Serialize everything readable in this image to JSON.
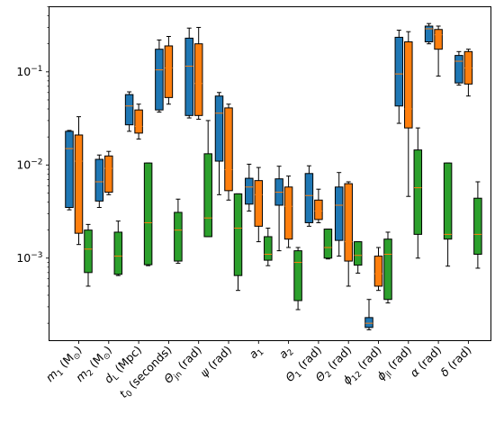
{
  "chart_data": {
    "type": "boxplot",
    "title": "",
    "xlabel": "",
    "ylabel": "",
    "yscale": "log",
    "ylim": [
      0.00013,
      0.5
    ],
    "y_ticks": [
      {
        "value": 0.001,
        "base": "10",
        "exp": "−3"
      },
      {
        "value": 0.01,
        "base": "10",
        "exp": "−2"
      },
      {
        "value": 0.1,
        "base": "10",
        "exp": "−1"
      }
    ],
    "grid": false,
    "legend": "none",
    "colors": {
      "s0": "#1f77b4",
      "s1": "#ff7f0e",
      "s2": "#2ca02c",
      "median": "#ff7f0e",
      "edge": "#000000"
    },
    "categories": [
      {
        "label": "m",
        "sub": "1",
        "unit": " (M",
        "unitsub": "⊙",
        "close": ")"
      },
      {
        "label": "m",
        "sub": "2",
        "unit": " (M",
        "unitsub": "⊙",
        "close": ")"
      },
      {
        "label": "d",
        "sub": "L",
        "unit": " (Mpc)",
        "unitsub": "",
        "close": ""
      },
      {
        "label": "t",
        "sub": "0",
        "unit": " (seconds)",
        "unitsub": "",
        "close": ""
      },
      {
        "label": "Θ",
        "sub": "jn",
        "unit": " (rad)",
        "unitsub": "",
        "close": ""
      },
      {
        "label": "ψ",
        "sub": "",
        "unit": " (rad)",
        "unitsub": "",
        "close": ""
      },
      {
        "label": "a",
        "sub": "1",
        "unit": "",
        "unitsub": "",
        "close": ""
      },
      {
        "label": "a",
        "sub": "2",
        "unit": "",
        "unitsub": "",
        "close": ""
      },
      {
        "label": "Θ",
        "sub": "1",
        "unit": " (rad)",
        "unitsub": "",
        "close": ""
      },
      {
        "label": "Θ",
        "sub": "2",
        "unit": " (rad)",
        "unitsub": "",
        "close": ""
      },
      {
        "label": "ϕ",
        "sub": "12",
        "unit": " (rad)",
        "unitsub": "",
        "close": ""
      },
      {
        "label": "ϕ",
        "sub": "jl",
        "unit": " (rad)",
        "unitsub": "",
        "close": ""
      },
      {
        "label": "α",
        "sub": "",
        "unit": " (rad)",
        "unitsub": "",
        "close": ""
      },
      {
        "label": "δ",
        "sub": "",
        "unit": " (rad)",
        "unitsub": "",
        "close": ""
      }
    ],
    "series": [
      {
        "color": "#1f77b4",
        "boxes": [
          {
            "whislo": 0.0033,
            "q1": 0.0035,
            "med": 0.015,
            "q3": 0.023,
            "whishi": 0.0235
          },
          {
            "whislo": 0.0035,
            "q1": 0.0041,
            "med": 0.0066,
            "q3": 0.0115,
            "whishi": 0.0128
          },
          {
            "whislo": 0.023,
            "q1": 0.027,
            "med": 0.043,
            "q3": 0.057,
            "whishi": 0.061
          },
          {
            "whislo": 0.037,
            "q1": 0.039,
            "med": 0.105,
            "q3": 0.175,
            "whishi": 0.22
          },
          {
            "whislo": 0.032,
            "q1": 0.034,
            "med": 0.115,
            "q3": 0.23,
            "whishi": 0.295
          },
          {
            "whislo": 0.0048,
            "q1": 0.011,
            "med": 0.036,
            "q3": 0.055,
            "whishi": 0.06
          },
          {
            "whislo": 0.0032,
            "q1": 0.0038,
            "med": 0.0058,
            "q3": 0.0072,
            "whishi": 0.0102
          },
          {
            "whislo": 0.0012,
            "q1": 0.0037,
            "med": 0.0051,
            "q3": 0.0071,
            "whishi": 0.0097
          },
          {
            "whislo": 0.0022,
            "q1": 0.0024,
            "med": 0.0047,
            "q3": 0.0081,
            "whishi": 0.0098
          },
          {
            "whislo": 0.00105,
            "q1": 0.00155,
            "med": 0.0037,
            "q3": 0.0058,
            "whishi": 0.0083
          },
          {
            "whislo": 0.00017,
            "q1": 0.00018,
            "med": 0.0002,
            "q3": 0.00023,
            "whishi": 0.00036
          },
          {
            "whislo": 0.028,
            "q1": 0.043,
            "med": 0.095,
            "q3": 0.235,
            "whishi": 0.28
          },
          {
            "whislo": 0.2,
            "q1": 0.21,
            "med": 0.29,
            "q3": 0.31,
            "whishi": 0.33
          },
          {
            "whislo": 0.072,
            "q1": 0.076,
            "med": 0.13,
            "q3": 0.15,
            "whishi": 0.165
          }
        ]
      },
      {
        "color": "#ff7f0e",
        "boxes": [
          {
            "whislo": 0.0014,
            "q1": 0.00185,
            "med": 0.011,
            "q3": 0.021,
            "whishi": 0.033
          },
          {
            "whislo": 0.0048,
            "q1": 0.0051,
            "med": 0.0092,
            "q3": 0.0125,
            "whishi": 0.014
          },
          {
            "whislo": 0.019,
            "q1": 0.022,
            "med": 0.026,
            "q3": 0.039,
            "whishi": 0.045
          },
          {
            "whislo": 0.045,
            "q1": 0.053,
            "med": 0.11,
            "q3": 0.19,
            "whishi": 0.24
          },
          {
            "whislo": 0.031,
            "q1": 0.034,
            "med": 0.075,
            "q3": 0.2,
            "whishi": 0.3
          },
          {
            "whislo": 0.0042,
            "q1": 0.0053,
            "med": 0.0089,
            "q3": 0.041,
            "whishi": 0.045
          },
          {
            "whislo": 0.0015,
            "q1": 0.0022,
            "med": 0.0048,
            "q3": 0.0068,
            "whishi": 0.0094
          },
          {
            "whislo": 0.0013,
            "q1": 0.0016,
            "med": 0.0036,
            "q3": 0.0058,
            "whishi": 0.0076
          },
          {
            "whislo": 0.0024,
            "q1": 0.0026,
            "med": 0.0032,
            "q3": 0.0042,
            "whishi": 0.0055
          },
          {
            "whislo": 0.0005,
            "q1": 0.00093,
            "med": 0.0015,
            "q3": 0.0063,
            "whishi": 0.0066
          },
          {
            "whislo": 0.00045,
            "q1": 0.0005,
            "med": 0.00068,
            "q3": 0.00105,
            "whishi": 0.0013
          },
          {
            "whislo": 0.0046,
            "q1": 0.025,
            "med": 0.04,
            "q3": 0.21,
            "whishi": 0.27
          },
          {
            "whislo": 0.09,
            "q1": 0.175,
            "med": 0.25,
            "q3": 0.285,
            "whishi": 0.31
          },
          {
            "whislo": 0.055,
            "q1": 0.074,
            "med": 0.11,
            "q3": 0.165,
            "whishi": 0.175
          }
        ]
      },
      {
        "color": "#2ca02c",
        "boxes": [
          {
            "whislo": 0.0005,
            "q1": 0.0007,
            "med": 0.00125,
            "q3": 0.002,
            "whishi": 0.0023
          },
          {
            "whislo": 0.00065,
            "q1": 0.00067,
            "med": 0.00105,
            "q3": 0.0019,
            "whishi": 0.0025
          },
          {
            "whislo": 0.00083,
            "q1": 0.00085,
            "med": 0.0024,
            "q3": 0.0105,
            "whishi": 0.0105
          },
          {
            "whislo": 0.00088,
            "q1": 0.00093,
            "med": 0.002,
            "q3": 0.0031,
            "whishi": 0.0043
          },
          {
            "whislo": 0.0017,
            "q1": 0.0017,
            "med": 0.0027,
            "q3": 0.0132,
            "whishi": 0.03
          },
          {
            "whislo": 0.00045,
            "q1": 0.00065,
            "med": 0.0021,
            "q3": 0.0049,
            "whishi": 0.0049
          },
          {
            "whislo": 0.00083,
            "q1": 0.00095,
            "med": 0.0011,
            "q3": 0.0017,
            "whishi": 0.0021
          },
          {
            "whislo": 0.00028,
            "q1": 0.00035,
            "med": 0.0009,
            "q3": 0.0012,
            "whishi": 0.0013
          },
          {
            "whislo": 0.00098,
            "q1": 0.001,
            "med": 0.0013,
            "q3": 0.00205,
            "whishi": 0.00205
          },
          {
            "whislo": 0.00069,
            "q1": 0.00084,
            "med": 0.00107,
            "q3": 0.0015,
            "whishi": 0.0015
          },
          {
            "whislo": 0.00033,
            "q1": 0.00036,
            "med": 0.0011,
            "q3": 0.0016,
            "whishi": 0.0019
          },
          {
            "whislo": 0.001,
            "q1": 0.0018,
            "med": 0.0057,
            "q3": 0.0145,
            "whishi": 0.025
          },
          {
            "whislo": 0.00082,
            "q1": 0.0016,
            "med": 0.0018,
            "q3": 0.0105,
            "whishi": 0.0105
          },
          {
            "whislo": 0.00078,
            "q1": 0.0011,
            "med": 0.0018,
            "q3": 0.0044,
            "whishi": 0.0066
          }
        ]
      }
    ]
  }
}
